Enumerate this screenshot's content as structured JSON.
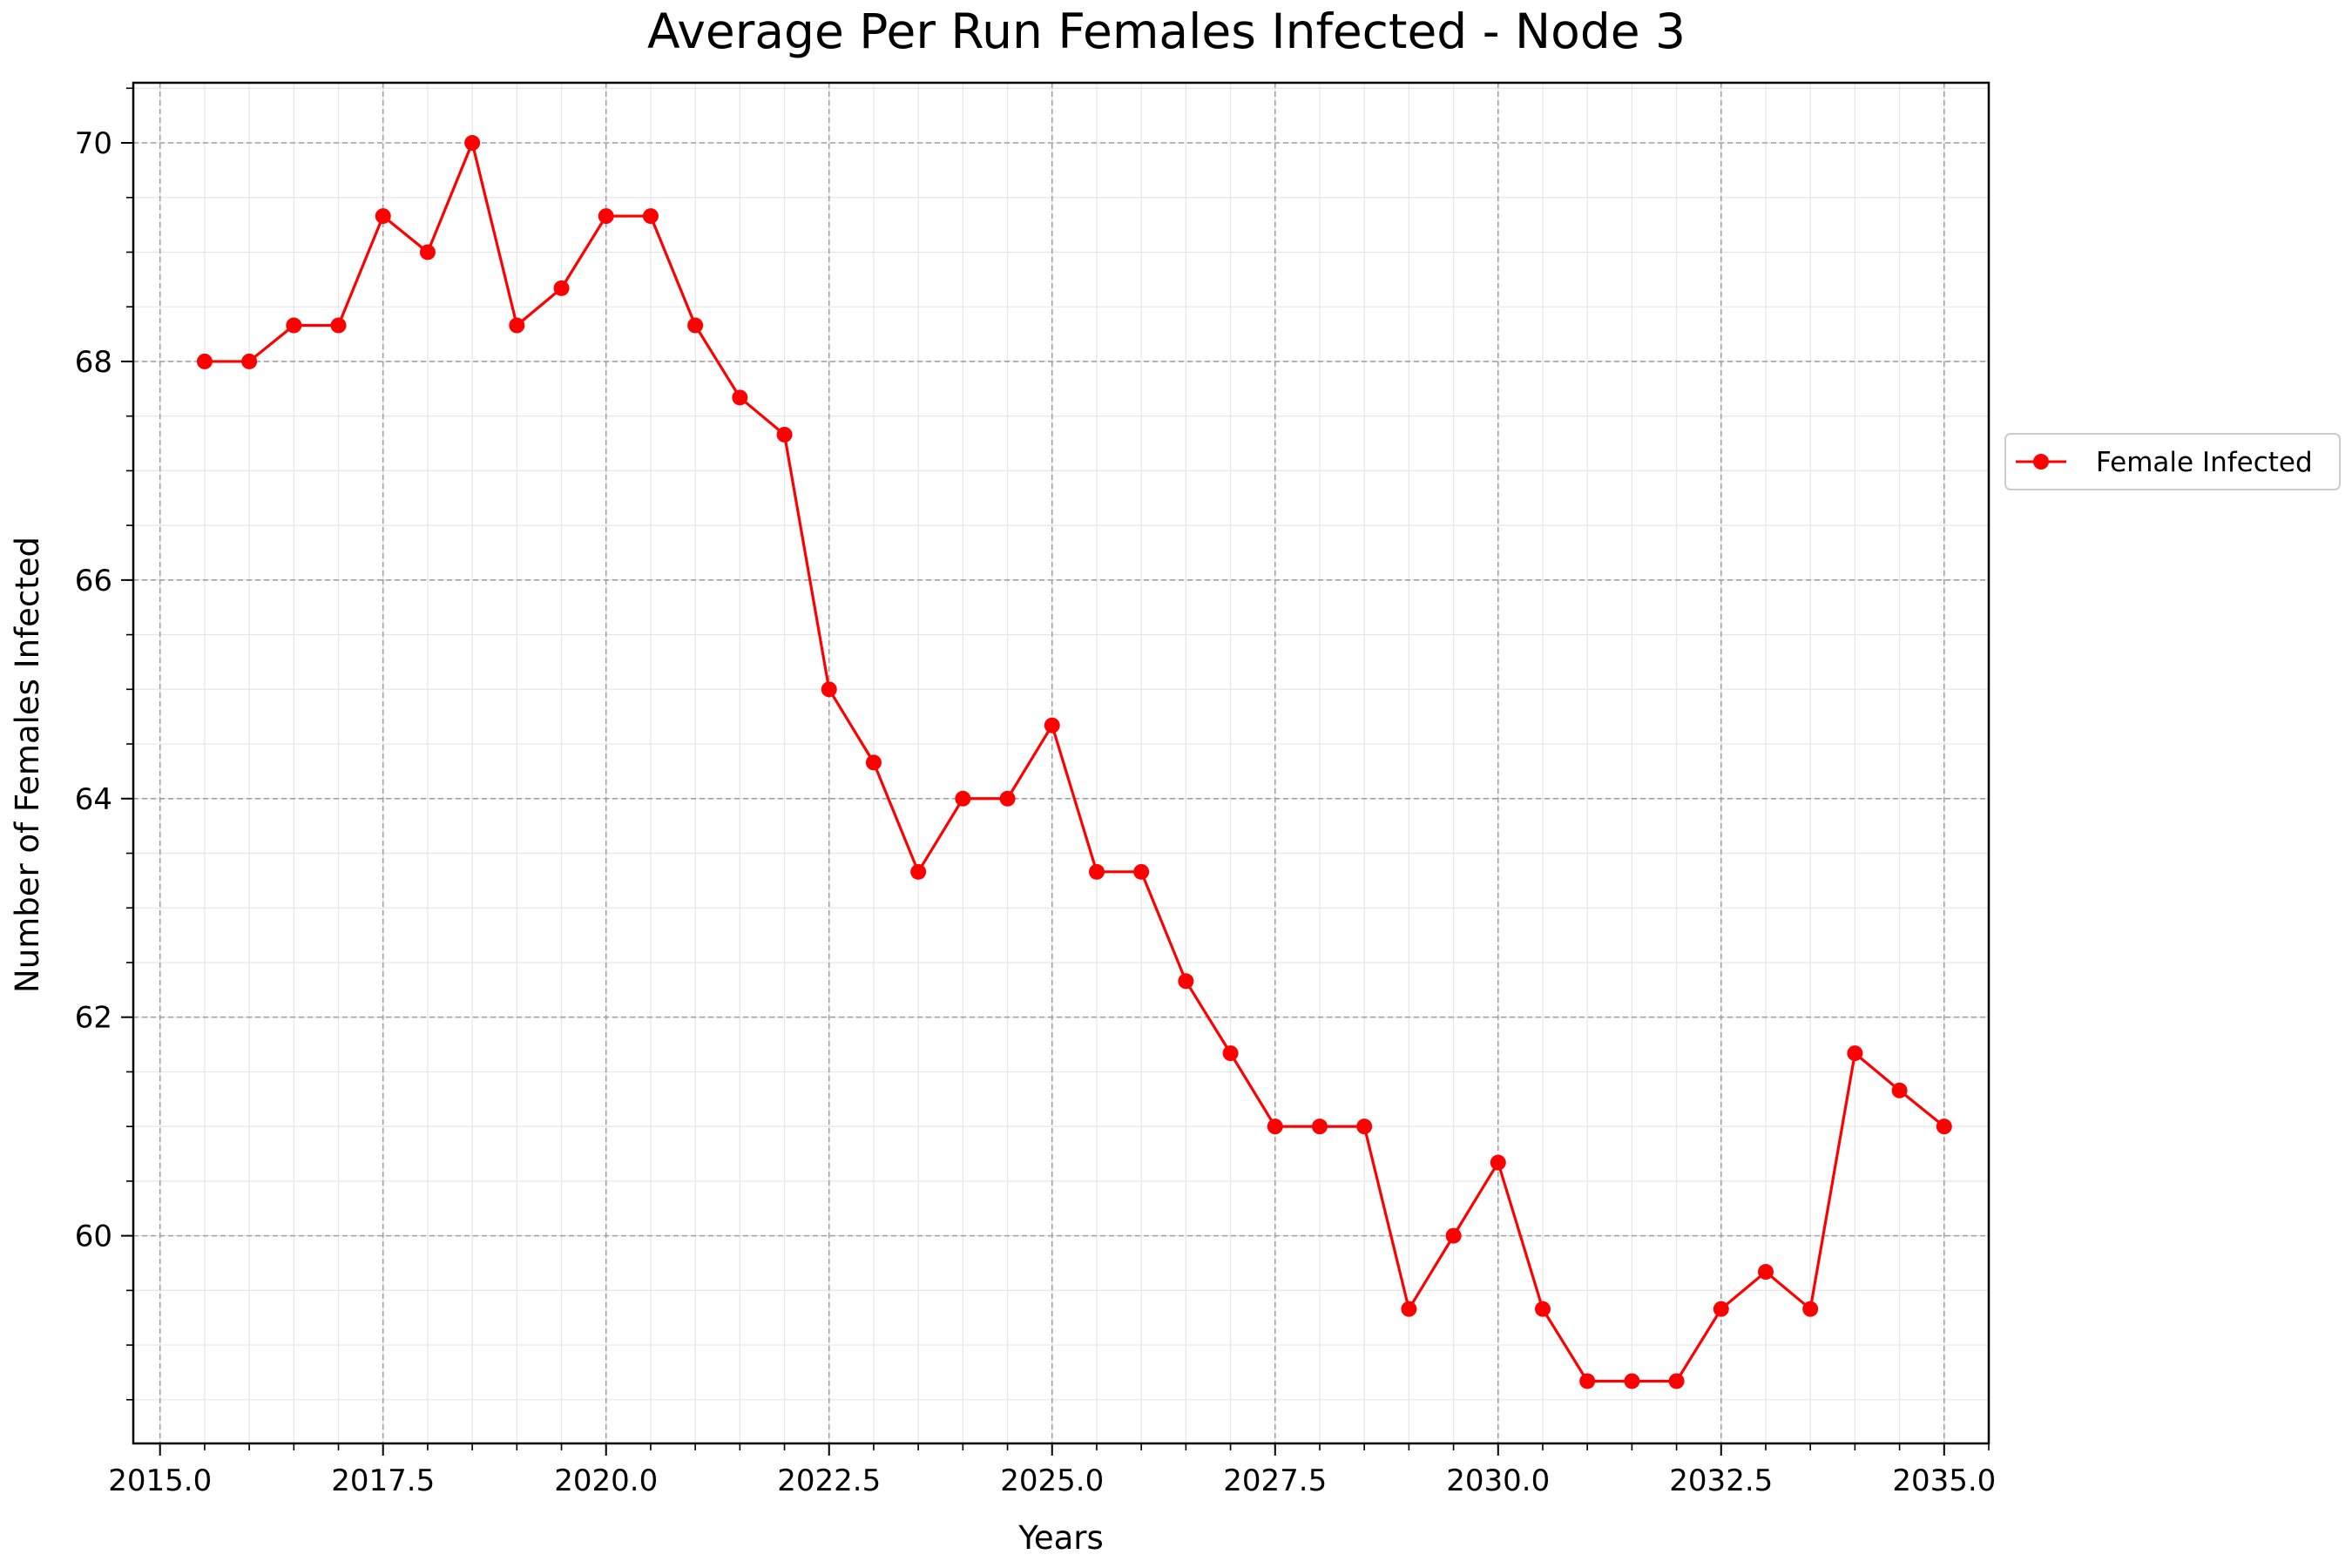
{
  "chart_data": {
    "type": "line",
    "title": "Average Per Run Females Infected - Node 3",
    "xlabel": "Years",
    "ylabel": "Number of Females Infected",
    "xlim": [
      2014.7,
      2035.5
    ],
    "ylim": [
      58.1,
      70.55
    ],
    "x_ticks": [
      2015.0,
      2017.5,
      2020.0,
      2022.5,
      2025.0,
      2027.5,
      2030.0,
      2032.5,
      2035.0
    ],
    "x_tick_labels": [
      "2015.0",
      "2017.5",
      "2020.0",
      "2022.5",
      "2025.0",
      "2027.5",
      "2030.0",
      "2032.5",
      "2035.0"
    ],
    "y_ticks": [
      60,
      62,
      64,
      66,
      68,
      70
    ],
    "y_tick_labels": [
      "60",
      "62",
      "64",
      "66",
      "68",
      "70"
    ],
    "grid": true,
    "legend_position": "right",
    "series": [
      {
        "name": "Female Infected",
        "color": "#ff0000",
        "marker": "circle",
        "x": [
          2015.5,
          2016.0,
          2016.5,
          2017.0,
          2017.5,
          2018.0,
          2018.5,
          2019.0,
          2019.5,
          2020.0,
          2020.5,
          2021.0,
          2021.5,
          2022.0,
          2022.5,
          2023.0,
          2023.5,
          2024.0,
          2024.5,
          2025.0,
          2025.5,
          2026.0,
          2026.5,
          2027.0,
          2027.5,
          2028.0,
          2028.5,
          2029.0,
          2029.5,
          2030.0,
          2030.5,
          2031.0,
          2031.5,
          2032.0,
          2032.5,
          2033.0,
          2033.5,
          2034.0,
          2034.5,
          2035.0
        ],
        "y": [
          68.0,
          68.0,
          68.33,
          68.33,
          69.33,
          69.0,
          70.0,
          68.33,
          68.67,
          69.33,
          69.33,
          68.33,
          67.67,
          67.33,
          65.0,
          64.33,
          63.33,
          64.0,
          64.0,
          64.67,
          63.33,
          63.33,
          62.33,
          61.67,
          61.0,
          61.0,
          61.0,
          59.33,
          60.0,
          60.67,
          59.33,
          58.67,
          58.67,
          58.67,
          59.33,
          59.67,
          59.33,
          61.67,
          61.33,
          61.0
        ]
      }
    ]
  }
}
